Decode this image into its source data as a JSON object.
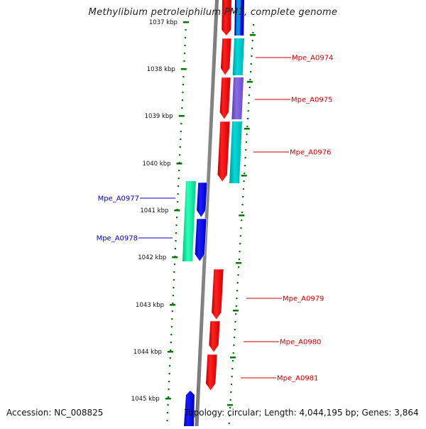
{
  "title": "Methylibium petroleiphilum PM1, complete genome",
  "footer": {
    "accession": "Accession: NC_008825",
    "summary": "Topology: circular; Length: 4,044,195 bp; Genes: 3,864"
  },
  "colors": {
    "tick": "#007700",
    "plus_strand_label": "#cc0000",
    "minus_strand_label": "#0000cc",
    "backbone": "#808080"
  },
  "ruler": {
    "unit": "kbp",
    "ticks": [
      "1037 kbp",
      "1038 kbp",
      "1039 kbp",
      "1040 kbp",
      "1041 kbp",
      "1042 kbp",
      "1043 kbp",
      "1044 kbp",
      "1045 kbp"
    ]
  },
  "genes": [
    {
      "label": "Mpe_A0974",
      "strand": "plus",
      "color": "#ff0000",
      "feature_color": "#00c8c8"
    },
    {
      "label": "Mpe_A0975",
      "strand": "plus",
      "color": "#ff0000",
      "feature_color": "#7a5cd6"
    },
    {
      "label": "Mpe_A0976",
      "strand": "plus",
      "color": "#ff0000",
      "feature_color": "#00c8c8"
    },
    {
      "label": "Mpe_A0977",
      "strand": "minus",
      "color": "#0000ff",
      "feature_color": "#00e8a0"
    },
    {
      "label": "Mpe_A0978",
      "strand": "minus",
      "color": "#0000ff",
      "feature_color": "#00e8a0"
    },
    {
      "label": "Mpe_A0979",
      "strand": "plus",
      "color": "#ff0000"
    },
    {
      "label": "Mpe_A0980",
      "strand": "plus",
      "color": "#ff0000"
    },
    {
      "label": "Mpe_A0981",
      "strand": "plus",
      "color": "#ff0000"
    }
  ]
}
